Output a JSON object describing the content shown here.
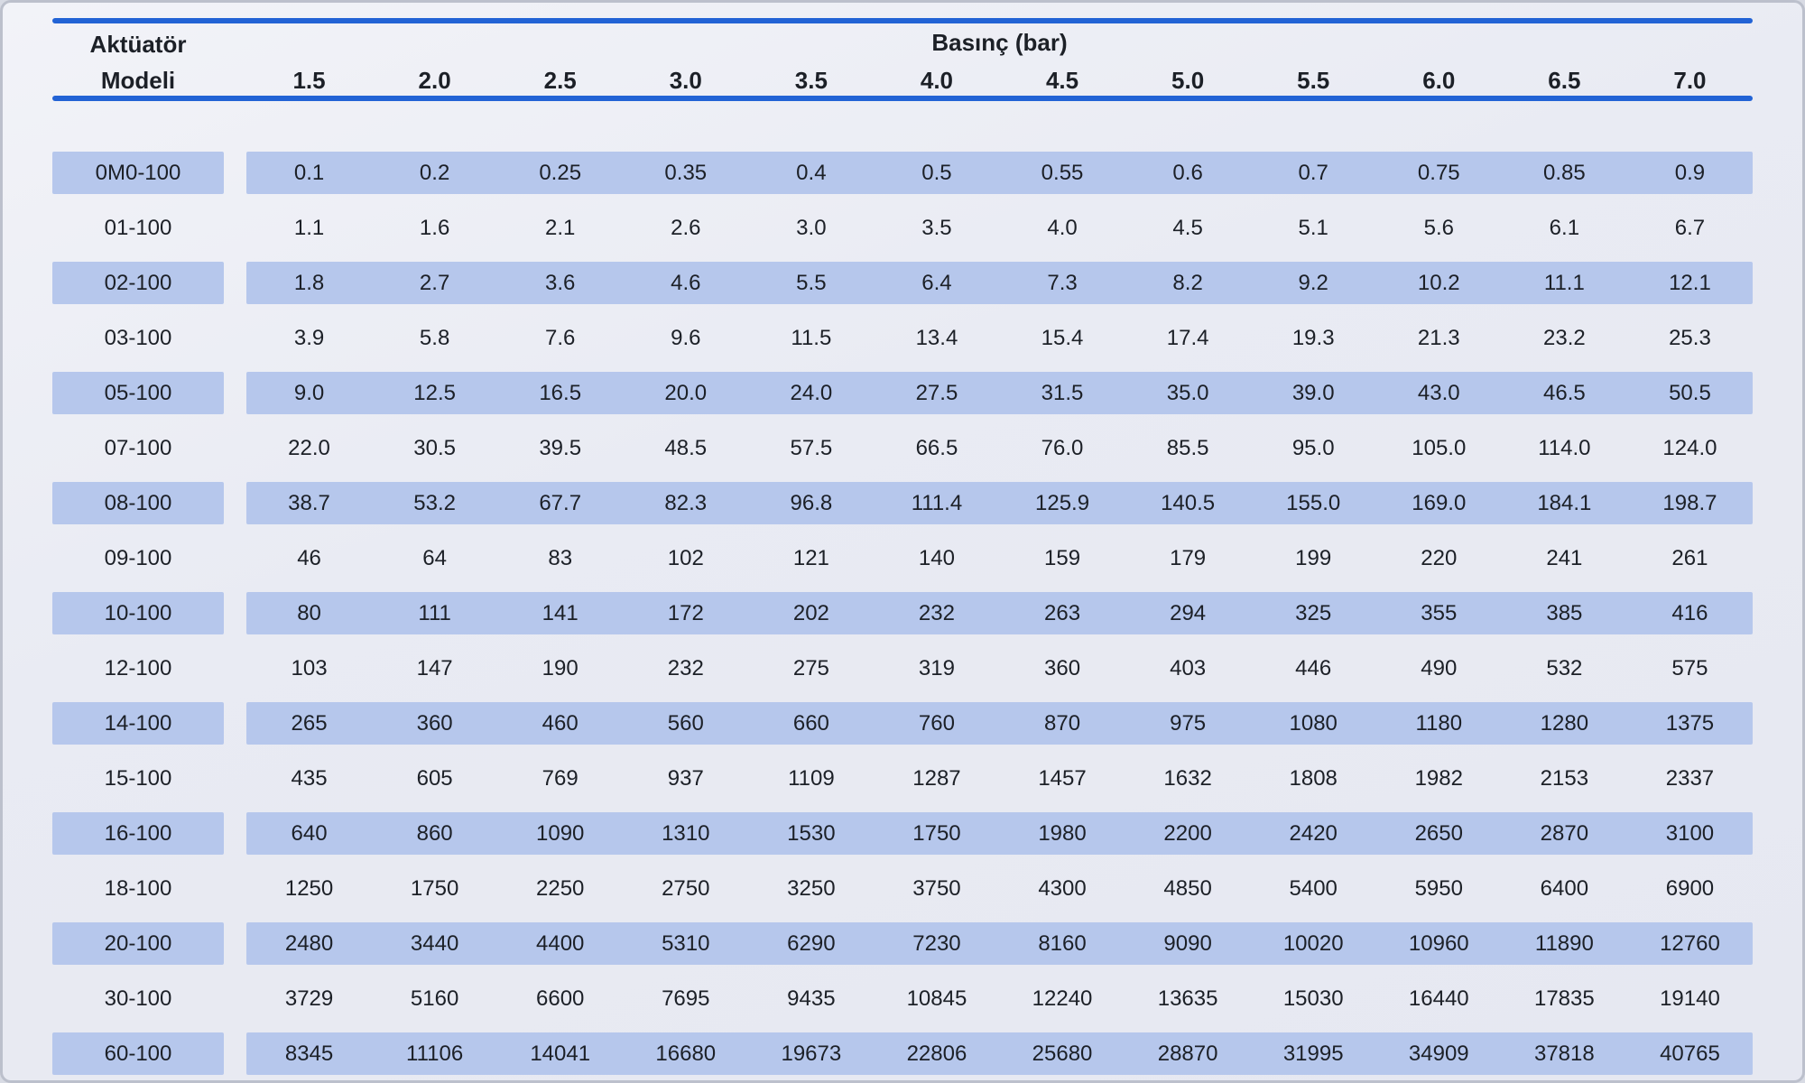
{
  "table": {
    "model_header_line1": "Aktüatör",
    "model_header_line2": "Modeli",
    "pressure_header": "Basınç (bar)",
    "pressure_columns": [
      "1.5",
      "2.0",
      "2.5",
      "3.0",
      "3.5",
      "4.0",
      "4.5",
      "5.0",
      "5.5",
      "6.0",
      "6.5",
      "7.0"
    ],
    "rows": [
      {
        "model": "0M0-100",
        "values": [
          "0.1",
          "0.2",
          "0.25",
          "0.35",
          "0.4",
          "0.5",
          "0.55",
          "0.6",
          "0.7",
          "0.75",
          "0.85",
          "0.9"
        ]
      },
      {
        "model": "01-100",
        "values": [
          "1.1",
          "1.6",
          "2.1",
          "2.6",
          "3.0",
          "3.5",
          "4.0",
          "4.5",
          "5.1",
          "5.6",
          "6.1",
          "6.7"
        ]
      },
      {
        "model": "02-100",
        "values": [
          "1.8",
          "2.7",
          "3.6",
          "4.6",
          "5.5",
          "6.4",
          "7.3",
          "8.2",
          "9.2",
          "10.2",
          "11.1",
          "12.1"
        ]
      },
      {
        "model": "03-100",
        "values": [
          "3.9",
          "5.8",
          "7.6",
          "9.6",
          "11.5",
          "13.4",
          "15.4",
          "17.4",
          "19.3",
          "21.3",
          "23.2",
          "25.3"
        ]
      },
      {
        "model": "05-100",
        "values": [
          "9.0",
          "12.5",
          "16.5",
          "20.0",
          "24.0",
          "27.5",
          "31.5",
          "35.0",
          "39.0",
          "43.0",
          "46.5",
          "50.5"
        ]
      },
      {
        "model": "07-100",
        "values": [
          "22.0",
          "30.5",
          "39.5",
          "48.5",
          "57.5",
          "66.5",
          "76.0",
          "85.5",
          "95.0",
          "105.0",
          "114.0",
          "124.0"
        ]
      },
      {
        "model": "08-100",
        "values": [
          "38.7",
          "53.2",
          "67.7",
          "82.3",
          "96.8",
          "111.4",
          "125.9",
          "140.5",
          "155.0",
          "169.0",
          "184.1",
          "198.7"
        ]
      },
      {
        "model": "09-100",
        "values": [
          "46",
          "64",
          "83",
          "102",
          "121",
          "140",
          "159",
          "179",
          "199",
          "220",
          "241",
          "261"
        ]
      },
      {
        "model": "10-100",
        "values": [
          "80",
          "111",
          "141",
          "172",
          "202",
          "232",
          "263",
          "294",
          "325",
          "355",
          "385",
          "416"
        ]
      },
      {
        "model": "12-100",
        "values": [
          "103",
          "147",
          "190",
          "232",
          "275",
          "319",
          "360",
          "403",
          "446",
          "490",
          "532",
          "575"
        ]
      },
      {
        "model": "14-100",
        "values": [
          "265",
          "360",
          "460",
          "560",
          "660",
          "760",
          "870",
          "975",
          "1080",
          "1180",
          "1280",
          "1375"
        ]
      },
      {
        "model": "15-100",
        "values": [
          "435",
          "605",
          "769",
          "937",
          "1109",
          "1287",
          "1457",
          "1632",
          "1808",
          "1982",
          "2153",
          "2337"
        ]
      },
      {
        "model": "16-100",
        "values": [
          "640",
          "860",
          "1090",
          "1310",
          "1530",
          "1750",
          "1980",
          "2200",
          "2420",
          "2650",
          "2870",
          "3100"
        ]
      },
      {
        "model": "18-100",
        "values": [
          "1250",
          "1750",
          "2250",
          "2750",
          "3250",
          "3750",
          "4300",
          "4850",
          "5400",
          "5950",
          "6400",
          "6900"
        ]
      },
      {
        "model": "20-100",
        "values": [
          "2480",
          "3440",
          "4400",
          "5310",
          "6290",
          "7230",
          "8160",
          "9090",
          "10020",
          "10960",
          "11890",
          "12760"
        ]
      },
      {
        "model": "30-100",
        "values": [
          "3729",
          "5160",
          "6600",
          "7695",
          "9435",
          "10845",
          "12240",
          "13635",
          "15030",
          "16440",
          "17835",
          "19140"
        ]
      },
      {
        "model": "60-100",
        "values": [
          "8345",
          "11106",
          "14041",
          "16680",
          "19673",
          "22806",
          "25680",
          "28870",
          "31995",
          "34909",
          "37818",
          "40765"
        ]
      }
    ],
    "colors": {
      "rule_blue": "#2263d5",
      "row_highlight": "#b6c7ec",
      "background": "#e9ebf3",
      "text": "#1c2027"
    }
  }
}
